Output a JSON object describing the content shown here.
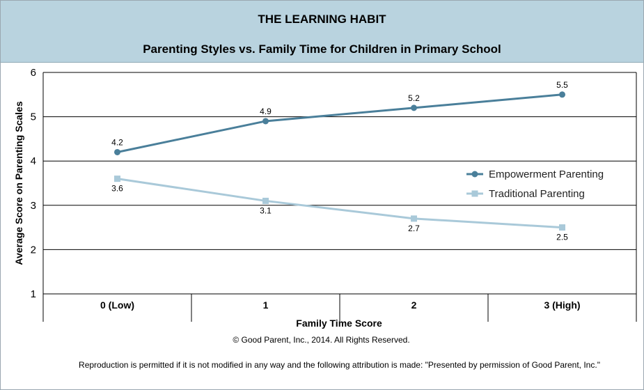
{
  "header": {
    "title": "THE LEARNING HABIT",
    "subtitle": "Parenting Styles vs. Family Time for Children in Primary School"
  },
  "chart_data": {
    "type": "line",
    "categories": [
      "0 (Low)",
      "1",
      "2",
      "3 (High)"
    ],
    "series": [
      {
        "name": "Empowerment Parenting",
        "values": [
          4.2,
          4.9,
          5.2,
          5.5
        ],
        "color": "#4a7f9a",
        "marker": "circle"
      },
      {
        "name": "Traditional Parenting",
        "values": [
          3.6,
          3.1,
          2.7,
          2.5
        ],
        "color": "#a9c9d9",
        "marker": "square"
      }
    ],
    "xlabel": "Family Time Score",
    "ylabel": "Average Score on Parenting Scales",
    "ylim": [
      1,
      6
    ],
    "yticks": [
      1,
      2,
      3,
      4,
      5,
      6
    ],
    "grid": true,
    "legend": "right",
    "data_labels": true
  },
  "footer": {
    "copyright": "© Good Parent, Inc., 2014. All Rights Reserved.",
    "notice": "Reproduction is permitted if it is not modified in any way and the following attribution is made: \"Presented by permission of Good Parent, Inc.\""
  }
}
